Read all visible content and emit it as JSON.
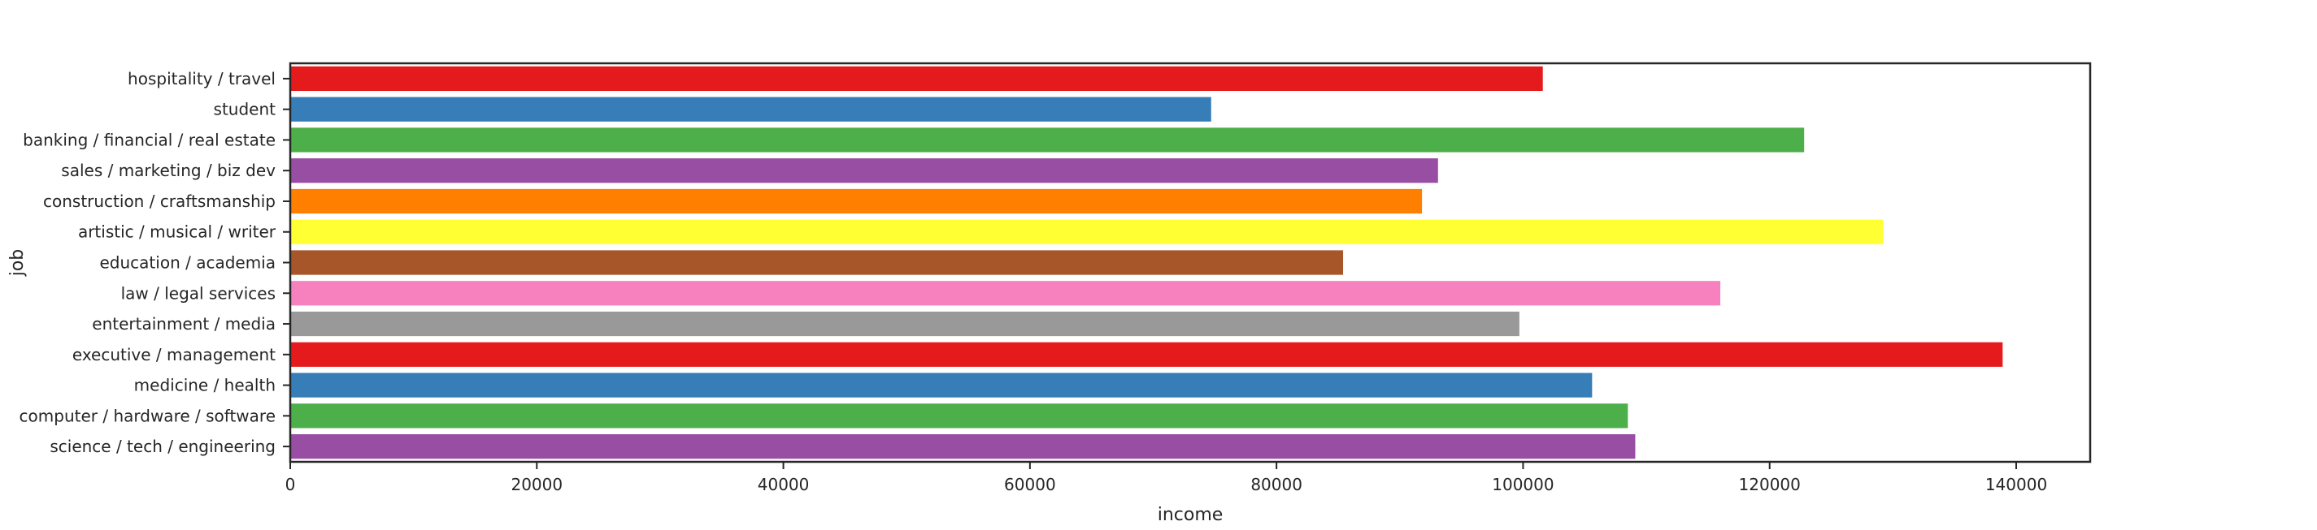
{
  "chart_data": {
    "type": "bar",
    "orientation": "horizontal",
    "title": "",
    "xlabel": "income",
    "ylabel": "job",
    "xlim": [
      0,
      146000
    ],
    "xticks": [
      0,
      20000,
      40000,
      60000,
      80000,
      100000,
      120000,
      140000
    ],
    "xtick_labels": [
      "0",
      "20000",
      "40000",
      "60000",
      "80000",
      "100000",
      "120000",
      "140000"
    ],
    "grid": false,
    "legend": "none",
    "categories": [
      "hospitality / travel",
      "student",
      "banking / financial / real estate",
      "sales / marketing / biz dev",
      "construction / craftsmanship",
      "artistic / musical / writer",
      "education / academia",
      "law / legal services",
      "entertainment / media",
      "executive / management",
      "medicine / health",
      "computer / hardware / software",
      "science / tech / engineering"
    ],
    "values": [
      101600,
      74700,
      122800,
      93100,
      91800,
      129200,
      85400,
      116000,
      99700,
      138900,
      105600,
      108500,
      109100
    ],
    "colors": [
      "#e41a1c",
      "#377eb8",
      "#4daf4a",
      "#984ea3",
      "#ff7f00",
      "#ffff33",
      "#a65628",
      "#f781bf",
      "#999999",
      "#e41a1c",
      "#377eb8",
      "#4daf4a",
      "#984ea3"
    ]
  }
}
